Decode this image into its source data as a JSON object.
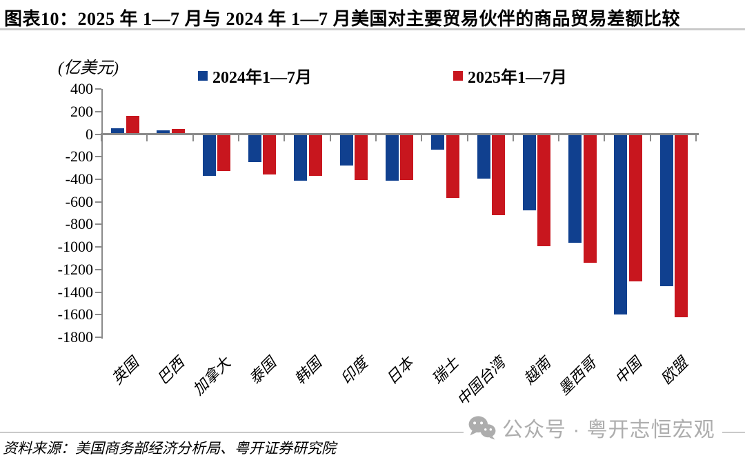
{
  "page": {
    "title": "图表10：2025 年 1—7 月与 2024 年 1—7 月美国对主要贸易伙伴的商品贸易差额比较",
    "source": "资料来源：美国商务部经济分析局、粤开证券研究院",
    "watermark_text": "公众号 · 粤开志恒宏观"
  },
  "chart_data": {
    "type": "bar",
    "title": "2025年1—7月与2024年1—7月美国对主要贸易伙伴的商品贸易差额比较",
    "unit_label": "(亿美元)",
    "categories": [
      "英国",
      "巴西",
      "加拿大",
      "泰国",
      "韩国",
      "印度",
      "日本",
      "瑞士",
      "中国台湾",
      "越南",
      "墨西哥",
      "中国",
      "欧盟"
    ],
    "series": [
      {
        "name": "2024年1—7月",
        "color": "#10408F",
        "values": [
          55,
          35,
          -370,
          -250,
          -410,
          -280,
          -415,
          -140,
          -395,
          -675,
          -965,
          -1600,
          -1350
        ]
      },
      {
        "name": "2025年1—7月",
        "color": "#C8161E",
        "values": [
          160,
          45,
          -325,
          -360,
          -370,
          -405,
          -405,
          -565,
          -715,
          -990,
          -1140,
          -1305,
          -1620
        ]
      }
    ],
    "ylim": [
      -1800,
      400
    ],
    "yticks": [
      400,
      200,
      0,
      -200,
      -400,
      -600,
      -800,
      -1000,
      -1200,
      -1400,
      -1600,
      -1800
    ],
    "xlabel": "",
    "ylabel": "(亿美元)",
    "legend_position": "top",
    "grid": false
  },
  "colors": {
    "axis": "#8A8A8A",
    "rule": "#C9C9C9",
    "watermark": "#ADADAD",
    "series_2024": "#10408F",
    "series_2025": "#C8161E"
  }
}
